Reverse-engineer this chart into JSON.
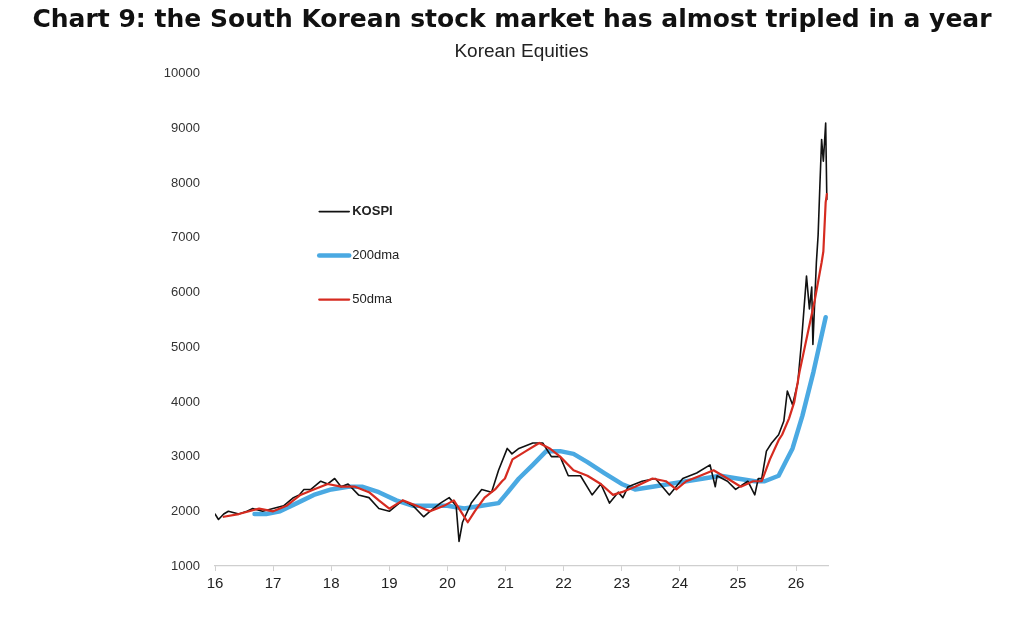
{
  "chart_data": {
    "type": "line",
    "title": "Chart 9: the South Korean stock market has almost tripled in a year",
    "subtitle": "Korean Equities",
    "xlim": [
      16,
      26.55
    ],
    "xticks": [
      16,
      17,
      18,
      19,
      20,
      21,
      22,
      23,
      24,
      25,
      26
    ],
    "ylim": [
      1000,
      10000
    ],
    "yticks": [
      1000,
      2000,
      3000,
      4000,
      5000,
      6000,
      7000,
      8000,
      9000,
      10000
    ],
    "grid": false,
    "legend": "top left",
    "marker": "none",
    "line_style": "solid",
    "series": [
      {
        "name": "KOSPI",
        "color": "#111111",
        "x": [
          16.0,
          16.06,
          16.15,
          16.23,
          16.41,
          16.55,
          16.65,
          16.82,
          17.0,
          17.18,
          17.35,
          17.45,
          17.53,
          17.65,
          17.82,
          17.94,
          18.06,
          18.17,
          18.29,
          18.47,
          18.65,
          18.82,
          19.0,
          19.23,
          19.41,
          19.59,
          19.7,
          19.88,
          20.03,
          20.15,
          20.2,
          20.26,
          20.41,
          20.59,
          20.76,
          20.88,
          21.03,
          21.11,
          21.23,
          21.47,
          21.64,
          21.79,
          21.94,
          22.08,
          22.29,
          22.49,
          22.64,
          22.79,
          22.94,
          23.02,
          23.11,
          23.35,
          23.58,
          23.82,
          24.05,
          24.29,
          24.52,
          24.61,
          24.64,
          24.82,
          24.96,
          25.17,
          25.29,
          25.35,
          25.41,
          25.49,
          25.58,
          25.7,
          25.79,
          25.85,
          25.94,
          26.03,
          26.09,
          26.18,
          26.23,
          26.27,
          26.29,
          26.35,
          26.38,
          26.41,
          26.44,
          26.47,
          26.51,
          26.53
        ],
        "values": [
          1950,
          1850,
          1950,
          2000,
          1950,
          2000,
          2050,
          2000,
          2050,
          2100,
          2250,
          2300,
          2400,
          2400,
          2550,
          2500,
          2600,
          2450,
          2500,
          2300,
          2250,
          2050,
          2000,
          2200,
          2100,
          1900,
          2000,
          2150,
          2250,
          2100,
          1450,
          1800,
          2150,
          2400,
          2350,
          2750,
          3150,
          3050,
          3150,
          3250,
          3250,
          3000,
          3000,
          2650,
          2650,
          2300,
          2500,
          2150,
          2350,
          2250,
          2450,
          2550,
          2600,
          2300,
          2600,
          2700,
          2850,
          2450,
          2650,
          2550,
          2400,
          2550,
          2300,
          2600,
          2600,
          3100,
          3250,
          3400,
          3650,
          4200,
          3950,
          4350,
          5050,
          6300,
          5700,
          6100,
          5050,
          6550,
          7050,
          7950,
          8800,
          8400,
          9100,
          7700
        ]
      },
      {
        "name": "200dma",
        "color": "#4aa9e2",
        "x": [
          16.68,
          16.88,
          17.12,
          17.41,
          17.7,
          18.0,
          18.29,
          18.53,
          18.82,
          19.12,
          19.41,
          19.7,
          20.0,
          20.29,
          20.59,
          20.88,
          21.0,
          21.23,
          21.47,
          21.7,
          21.94,
          22.17,
          22.41,
          22.7,
          23.0,
          23.23,
          23.53,
          23.82,
          24.11,
          24.41,
          24.7,
          24.99,
          25.29,
          25.46,
          25.7,
          25.82,
          25.94,
          26.11,
          26.3,
          26.51
        ],
        "values": [
          1950,
          1950,
          2000,
          2150,
          2300,
          2400,
          2450,
          2450,
          2350,
          2200,
          2100,
          2100,
          2100,
          2050,
          2100,
          2150,
          2300,
          2600,
          2850,
          3100,
          3100,
          3050,
          2900,
          2700,
          2500,
          2400,
          2450,
          2500,
          2550,
          2600,
          2650,
          2600,
          2550,
          2550,
          2650,
          2900,
          3150,
          3750,
          4550,
          5550
        ]
      },
      {
        "name": "50dma",
        "color": "#d62b20",
        "x": [
          16.15,
          16.41,
          16.76,
          17.0,
          17.23,
          17.47,
          17.7,
          17.94,
          18.17,
          18.41,
          18.65,
          18.82,
          19.0,
          19.23,
          19.47,
          19.7,
          19.94,
          20.11,
          20.23,
          20.35,
          20.47,
          20.64,
          20.82,
          20.94,
          20.99,
          21.12,
          21.35,
          21.58,
          21.76,
          21.94,
          22.17,
          22.41,
          22.64,
          22.85,
          23.0,
          23.23,
          23.53,
          23.76,
          23.94,
          24.11,
          24.35,
          24.58,
          24.82,
          25.05,
          25.26,
          25.41,
          25.55,
          25.7,
          25.76,
          25.88,
          25.97,
          26.06,
          26.2,
          26.32,
          26.44,
          26.47,
          26.51,
          26.53
        ],
        "values": [
          1900,
          1950,
          2050,
          2000,
          2100,
          2300,
          2400,
          2500,
          2450,
          2450,
          2350,
          2200,
          2050,
          2200,
          2100,
          2000,
          2100,
          2200,
          2000,
          1800,
          2000,
          2250,
          2400,
          2550,
          2600,
          2950,
          3100,
          3250,
          3150,
          3000,
          2750,
          2650,
          2500,
          2300,
          2350,
          2450,
          2600,
          2550,
          2400,
          2550,
          2650,
          2750,
          2600,
          2450,
          2550,
          2550,
          2950,
          3300,
          3400,
          3700,
          4000,
          4550,
          5250,
          5850,
          6550,
          6750,
          7650,
          7800
        ]
      }
    ]
  }
}
